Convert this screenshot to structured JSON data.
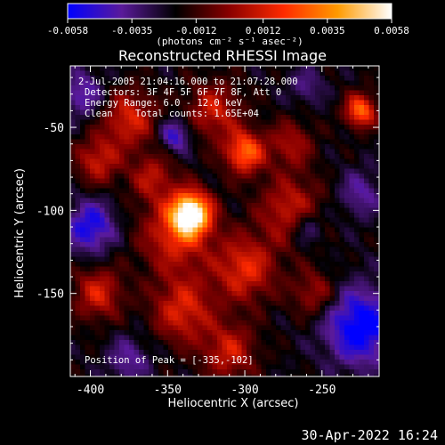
{
  "chart_data": {
    "type": "heatmap",
    "title": "Reconstructed RHESSI Image",
    "xlabel": "Heliocentric X (arcsec)",
    "ylabel": "Heliocentric Y (arcsec)",
    "xlim": [
      -413,
      -213
    ],
    "ylim": [
      -200,
      -13
    ],
    "x_ticks": [
      -400,
      -350,
      -300,
      -250
    ],
    "x_tick_labels": [
      "-400",
      "-350",
      "-300",
      "-250"
    ],
    "y_ticks": [
      -50,
      -100,
      -150
    ],
    "y_tick_labels": [
      "-50",
      "-100",
      "-150"
    ],
    "annotations": [
      "2-Jul-2005 21:04:16.000 to 21:07:28.000",
      "Detectors: 3F 4F 5F 6F 7F 8F, Att 0",
      "Energy Range: 6.0 - 12.0 keV",
      "Clean    Total counts: 1.65E+04",
      "Position of Peak = [-335,-102]"
    ],
    "peak": {
      "x": -335,
      "y": -102,
      "value": 0.0058
    },
    "colorbar": {
      "range": [
        -0.0058,
        0.0058
      ],
      "ticks": [
        -0.0058,
        -0.0035,
        -0.0012,
        0.0012,
        0.0035,
        0.0058
      ],
      "tick_labels": [
        "-0.0058",
        "-0.0035",
        "-0.0012",
        "0.0012",
        "0.0035",
        "0.0058"
      ],
      "units_label": "(photons cm⁻² s⁻¹ asec⁻²)",
      "colormap": [
        "#0000ff",
        "#5a1a9a",
        "#000000",
        "#8a0000",
        "#ff2a00",
        "#ff9a00",
        "#ffffff"
      ]
    },
    "blobs": [
      {
        "x": -335,
        "y": -102,
        "a": 1.0,
        "s": 9
      },
      {
        "x": -345,
        "y": -115,
        "a": 0.42,
        "s": 16
      },
      {
        "x": -300,
        "y": -65,
        "a": 0.62,
        "s": 9
      },
      {
        "x": -225,
        "y": -40,
        "a": 0.62,
        "s": 7
      },
      {
        "x": -375,
        "y": -45,
        "a": 0.42,
        "s": 12
      },
      {
        "x": -395,
        "y": -70,
        "a": 0.38,
        "s": 10
      },
      {
        "x": -320,
        "y": -40,
        "a": 0.38,
        "s": 12
      },
      {
        "x": -270,
        "y": -100,
        "a": 0.4,
        "s": 14
      },
      {
        "x": -300,
        "y": -135,
        "a": 0.45,
        "s": 14
      },
      {
        "x": -340,
        "y": -160,
        "a": 0.42,
        "s": 14
      },
      {
        "x": -395,
        "y": -150,
        "a": 0.4,
        "s": 11
      },
      {
        "x": -310,
        "y": -185,
        "a": 0.38,
        "s": 12
      },
      {
        "x": -255,
        "y": -150,
        "a": 0.3,
        "s": 10
      },
      {
        "x": -360,
        "y": -80,
        "a": 0.32,
        "s": 10
      },
      {
        "x": -270,
        "y": -60,
        "a": 0.3,
        "s": 10
      },
      {
        "x": -405,
        "y": -30,
        "a": -0.3,
        "s": 10
      },
      {
        "x": -400,
        "y": -110,
        "a": -0.45,
        "s": 11
      },
      {
        "x": -345,
        "y": -55,
        "a": -0.38,
        "s": 7
      },
      {
        "x": -225,
        "y": -170,
        "a": -0.55,
        "s": 16
      },
      {
        "x": -260,
        "y": -110,
        "a": -0.3,
        "s": 8
      },
      {
        "x": -225,
        "y": -90,
        "a": -0.25,
        "s": 10
      },
      {
        "x": -260,
        "y": -25,
        "a": -0.2,
        "s": 8
      },
      {
        "x": -375,
        "y": -190,
        "a": -0.25,
        "s": 10
      }
    ]
  },
  "footer": {
    "date_text": "30-Apr-2022 16:24"
  }
}
